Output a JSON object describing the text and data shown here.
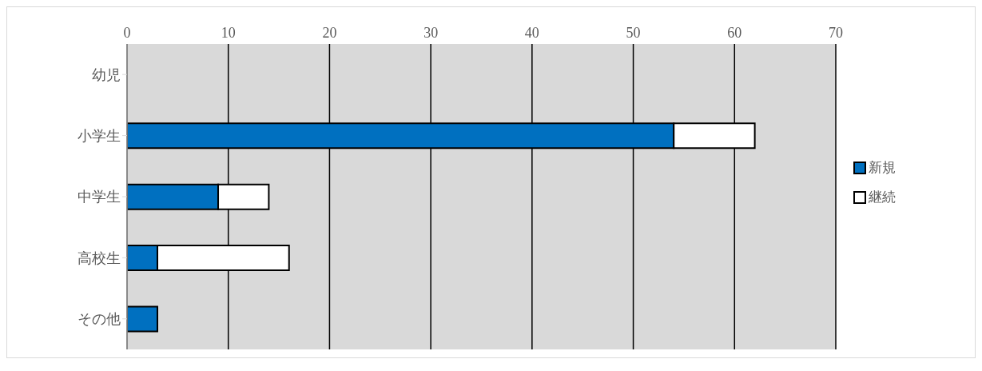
{
  "chart_data": {
    "type": "bar",
    "orientation": "horizontal",
    "stacked": true,
    "categories": [
      "幼児",
      "小学生",
      "中学生",
      "高校生",
      "その他"
    ],
    "series": [
      {
        "name": "新規",
        "color": "#0070c0",
        "values": [
          0,
          54,
          9,
          3,
          3
        ]
      },
      {
        "name": "継続",
        "color": "#ffffff",
        "values": [
          0,
          8,
          5,
          13,
          0
        ]
      }
    ],
    "xlim": [
      0,
      70
    ],
    "xticks": [
      0,
      10,
      20,
      30,
      40,
      50,
      60,
      70
    ],
    "grid": "x",
    "legend": "right"
  }
}
